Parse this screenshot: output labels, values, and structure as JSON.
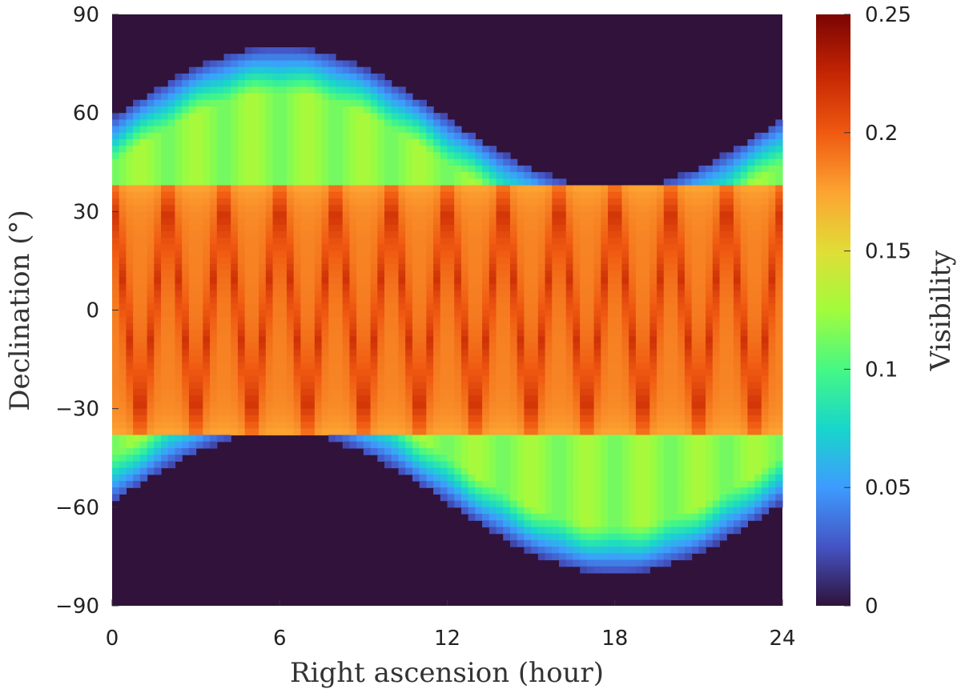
{
  "chart_data": {
    "type": "heatmap",
    "xlabel": "Right ascension (hour)",
    "ylabel": "Declination (°)",
    "colorbar_label": "Visibility",
    "xlim": [
      0,
      24
    ],
    "ylim": [
      -90,
      90
    ],
    "x_ticks": [
      0,
      6,
      12,
      18,
      24
    ],
    "y_ticks": [
      -90,
      -60,
      -30,
      0,
      30,
      60,
      90
    ],
    "y_tick_labels": [
      "−90",
      "−60",
      "−30",
      "0",
      "30",
      "60",
      "90"
    ],
    "clim": [
      0,
      0.25
    ],
    "colorbar_ticks": [
      0,
      0.05,
      0.1,
      0.15,
      0.2,
      0.25
    ],
    "colormap": "turbo",
    "background_color": "#30123b",
    "visibility_regions": {
      "high_band_dec": [
        -38,
        38
      ],
      "low_band_dec_north": [
        38,
        80
      ],
      "low_band_dec_south": [
        -80,
        -38
      ],
      "north_boundary_min_dec_at_ra18": 37,
      "south_boundary_max_dec_at_ra6": -37,
      "peak_value": 0.22,
      "band_value": 0.13
    }
  }
}
